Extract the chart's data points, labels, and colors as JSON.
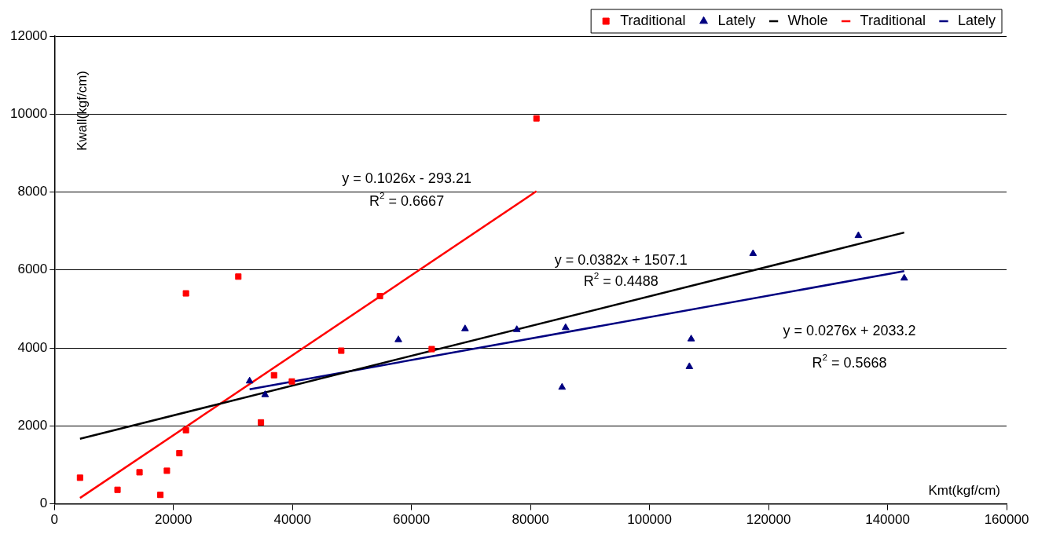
{
  "chart_data": {
    "type": "scatter",
    "xlabel": "Kmt(kgf/cm)",
    "ylabel": "Kwall(kgf/cm)",
    "xlim": [
      0,
      160000
    ],
    "xticks": [
      0,
      20000,
      40000,
      60000,
      80000,
      100000,
      120000,
      140000,
      160000
    ],
    "ylim": [
      0,
      12000
    ],
    "yticks": [
      0,
      2000,
      4000,
      6000,
      8000,
      10000,
      12000
    ],
    "grid": "y",
    "legend": "top right",
    "series": [
      {
        "name": "Traditional",
        "type": "scatter",
        "marker": "square",
        "color": "#ff0000",
        "x": [
          4300,
          10600,
          14300,
          17800,
          18900,
          21000,
          22100,
          22100,
          30900,
          34700,
          36900,
          39900,
          48200,
          54700,
          63400,
          81000
        ],
        "values": [
          670,
          360,
          810,
          230,
          850,
          1300,
          1890,
          5400,
          5830,
          2090,
          3300,
          3140,
          3930,
          5330,
          3970,
          9890
        ]
      },
      {
        "name": "Lately",
        "type": "scatter",
        "marker": "triangle",
        "color": "#000080",
        "x": [
          32800,
          35400,
          57800,
          69000,
          77700,
          85900,
          85300,
          107000,
          106700,
          117400,
          135100,
          142800
        ],
        "values": [
          3150,
          2800,
          4210,
          4490,
          4470,
          4520,
          2990,
          4230,
          3520,
          6420,
          6880,
          5790
        ]
      },
      {
        "name": "Whole",
        "type": "line",
        "marker": "none",
        "color": "#000000",
        "x": [
          4300,
          142800
        ],
        "values": [
          1670,
          6960
        ]
      },
      {
        "name": "Traditional",
        "type": "line",
        "marker": "none",
        "color": "#ff0000",
        "x": [
          4300,
          81000
        ],
        "values": [
          150,
          8020
        ]
      },
      {
        "name": "Lately",
        "type": "line",
        "marker": "none",
        "color": "#000080",
        "x": [
          32800,
          142800
        ],
        "values": [
          2940,
          5970
        ]
      }
    ],
    "annotations": [
      "y = 0.1026x - 293.21",
      "R$^{2}$ = 0.6667",
      "y = 0.0382x + 1507.1",
      "R$^{2}$ = 0.4488",
      "y = 0.0276x + 2033.2",
      "R$^{2}$ = 0.5668"
    ]
  }
}
